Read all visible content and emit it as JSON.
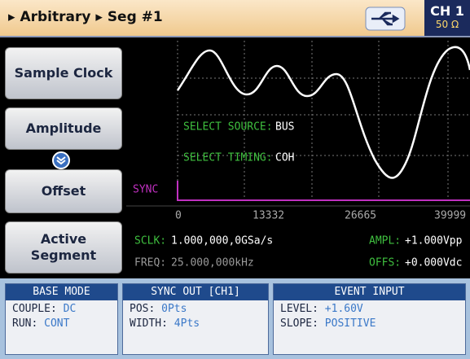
{
  "header": {
    "mode": "Arbitrary",
    "segment": "Seg #1",
    "channel": "CH 1",
    "impedance": "50 Ω"
  },
  "buttons": [
    "Sample Clock",
    "Amplitude",
    "Offset",
    "Active Segment"
  ],
  "display": {
    "source_label": "SELECT SOURCE:",
    "source_value": "BUS",
    "timing_label": "SELECT TIMING:",
    "timing_value": "COH",
    "sync_label": "SYNC",
    "x_labels": [
      "0",
      "13332",
      "26665",
      "39999"
    ],
    "sclk_label": "SCLK:",
    "sclk_value": "1.000,000,0GSa/s",
    "ampl_label": "AMPL:",
    "ampl_value": "+1.000Vpp",
    "freq_label": "FREQ:",
    "freq_value": "25.000,000kHz",
    "offs_label": "OFFS:",
    "offs_value": "+0.000Vdc"
  },
  "panels": [
    {
      "title": "BASE MODE",
      "rows": [
        [
          "COUPLE:",
          "DC"
        ],
        [
          "RUN:",
          "CONT"
        ]
      ]
    },
    {
      "title": "SYNC OUT [CH1]",
      "rows": [
        [
          "POS:",
          "0Pts"
        ],
        [
          "WIDTH:",
          "4Pts"
        ]
      ]
    },
    {
      "title": "EVENT INPUT",
      "rows": [
        [
          "LEVEL:",
          "+1.60V"
        ],
        [
          "SLOPE:",
          "POSITIVE"
        ]
      ]
    }
  ]
}
